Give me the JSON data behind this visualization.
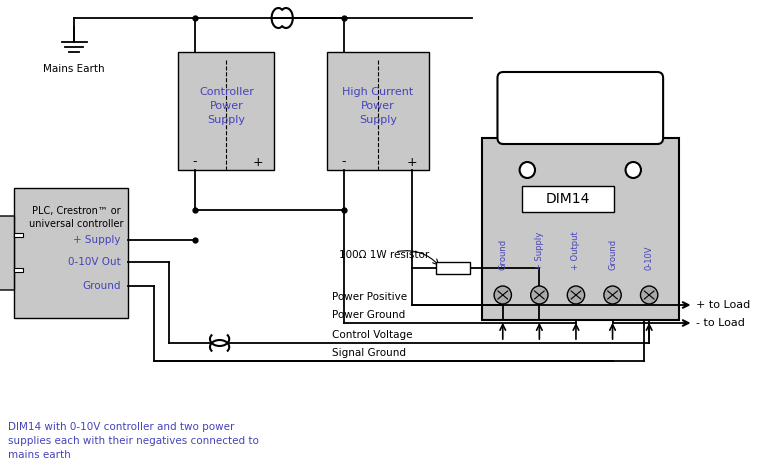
{
  "bg_color": "#ffffff",
  "box_fill": "#c8c8c8",
  "box_edge": "#000000",
  "blue": "#4444bb",
  "black": "#000000",
  "caption": "DIM14 with 0-10V controller and two power\nsupplies each with their negatives connected to\nmains earth",
  "mains_earth": "Mains Earth",
  "controller_ps": "Controller\nPower\nSupply",
  "hi_current_ps": "High Current\nPower\nSupply",
  "plc_text": "PLC, Crestron™ or\nuniversal controller",
  "plc_supply": "+ Supply",
  "plc_cv": "0-10V Out",
  "plc_gnd": "Ground",
  "dim14": "DIM14",
  "resistor": "100Ω 1W resistor",
  "power_pos": "Power Positive",
  "power_gnd": "Power Ground",
  "ctrl_voltage": "Control Voltage",
  "sig_gnd": "Signal Ground",
  "load_pos": "+ to Load",
  "load_neg": "- to Load",
  "terminals": [
    "Ground",
    "+ Supply",
    "+ Output",
    "Ground",
    "0-10V"
  ],
  "ctrl_minus": "-",
  "ctrl_plus": "+",
  "hi_minus": "-",
  "hi_plus": "+"
}
